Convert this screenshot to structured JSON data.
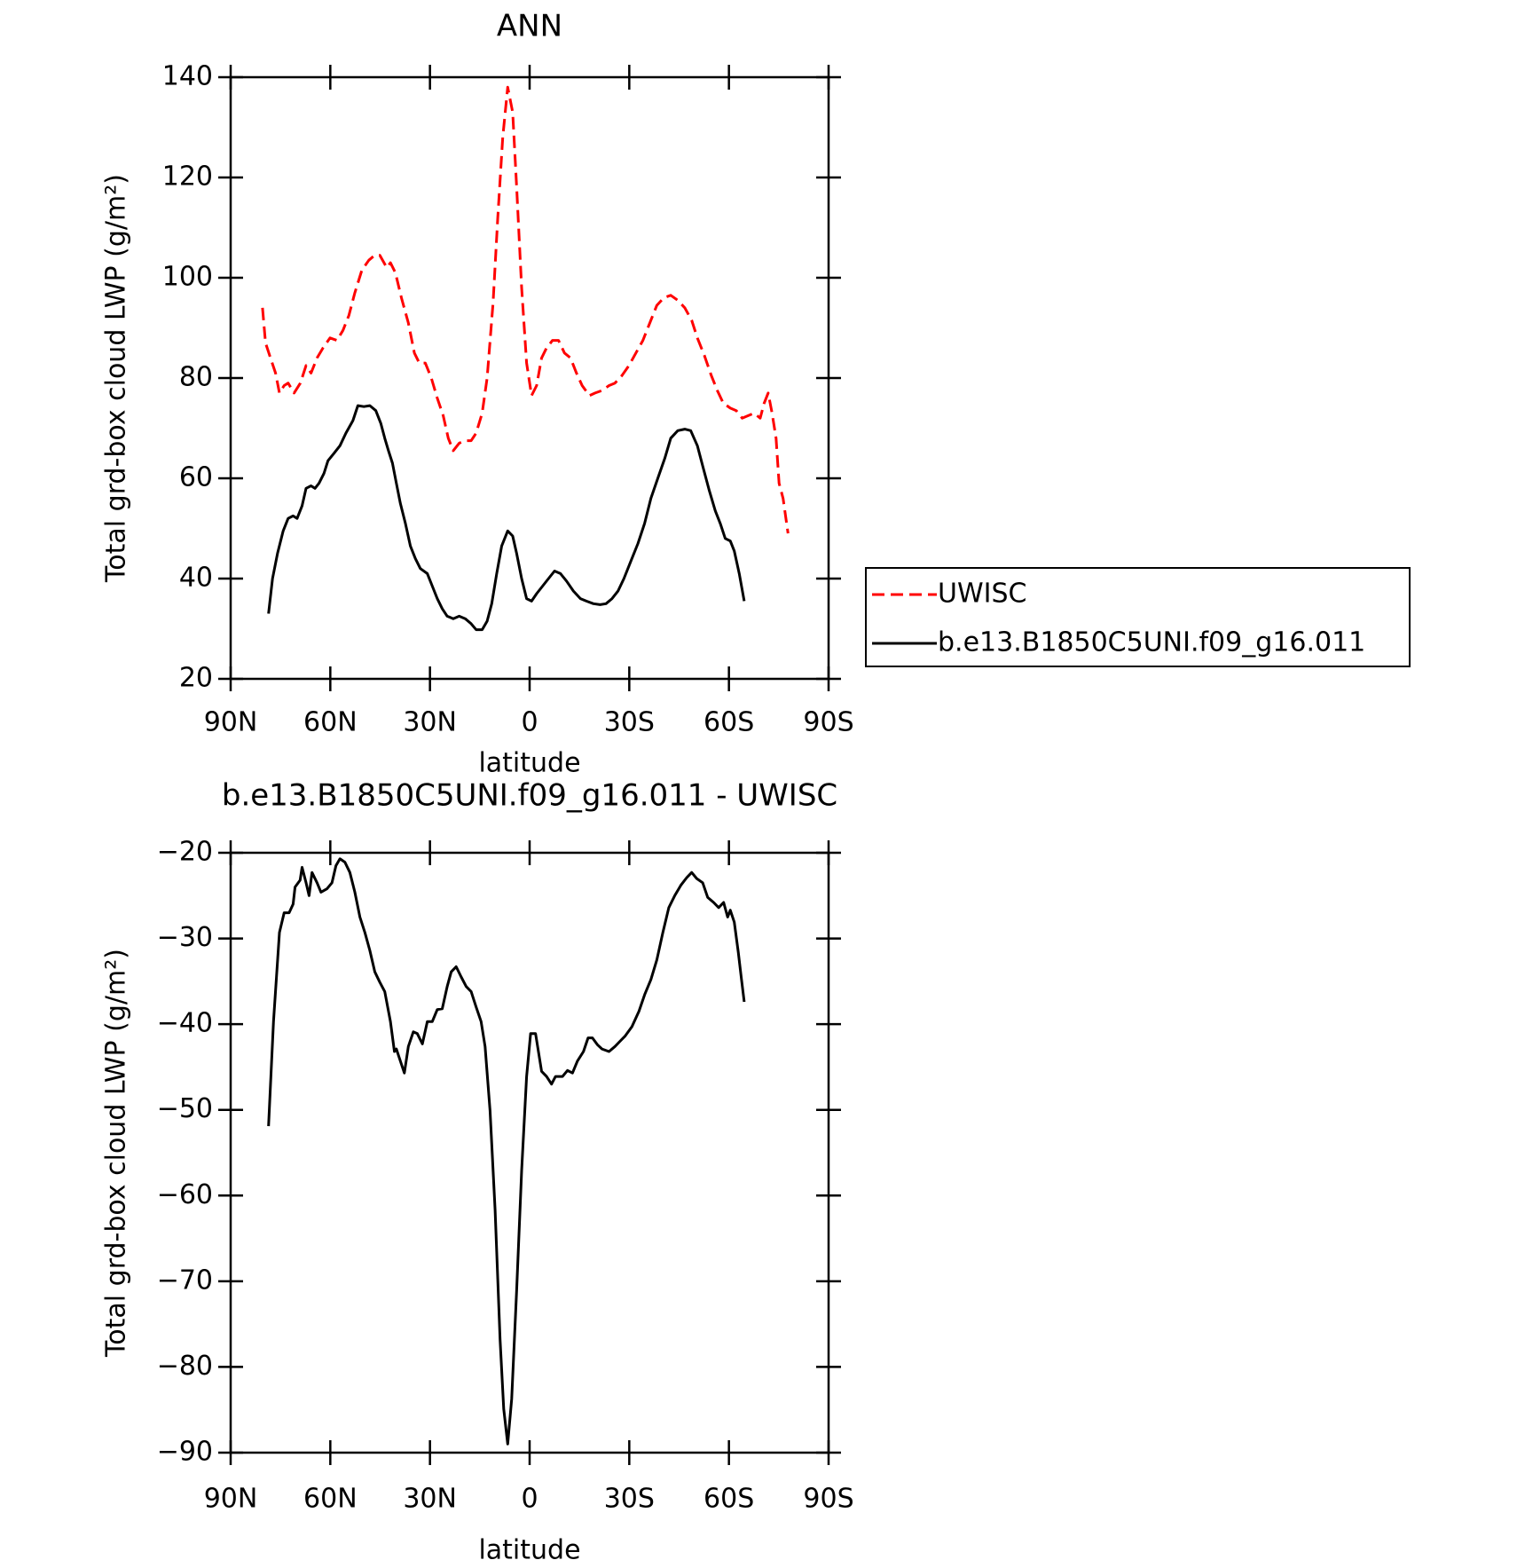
{
  "chart_data": [
    {
      "type": "line",
      "title": "ANN",
      "xlabel": "latitude",
      "ylabel": "Total grd-box cloud LWP (g/m²)",
      "xlim": [
        90,
        -90
      ],
      "ylim": [
        20,
        140
      ],
      "xticks": [
        {
          "value": 90,
          "label": "90N"
        },
        {
          "value": 60,
          "label": "60N"
        },
        {
          "value": 30,
          "label": "30N"
        },
        0,
        {
          "value": -30,
          "label": "30S"
        },
        {
          "value": -60,
          "label": "60S"
        },
        {
          "value": -90,
          "label": "90S"
        }
      ],
      "yticks": [
        20,
        40,
        60,
        80,
        100,
        120,
        140
      ],
      "legend": "right",
      "series": [
        {
          "name": "UWISC",
          "color": "#ff0000",
          "dash": true,
          "x": [
            80.4,
            79.5,
            78,
            76.5,
            75.3,
            73.9,
            72.7,
            70.9,
            69,
            67.3,
            65.8,
            64,
            62.2,
            60.1,
            58,
            56.2,
            54.4,
            52.6,
            50.5,
            48.4,
            46.6,
            45.1,
            43,
            41.9,
            40.4,
            38.6,
            36.5,
            34.7,
            33.2,
            31.4,
            29.6,
            27.8,
            26,
            24.5,
            23,
            21.2,
            19.4,
            17.6,
            16.1,
            14.3,
            12.8,
            11,
            9.6,
            8.1,
            6.6,
            5.1,
            3.9,
            2.4,
            0.9,
            -0.6,
            -2.1,
            -3.6,
            -5.1,
            -6.9,
            -8.7,
            -10.5,
            -12.3,
            -14.1,
            -15.8,
            -18,
            -19.7,
            -21.8,
            -23.9,
            -25.7,
            -27.8,
            -29.9,
            -32,
            -34.1,
            -36.2,
            -38.3,
            -40.4,
            -42.5,
            -44.6,
            -46.7,
            -48.8,
            -50.5,
            -52.6,
            -54.7,
            -56.5,
            -58.3,
            -60.4,
            -62.2,
            -64,
            -65.8,
            -67.6,
            -69.4,
            -70.6,
            -71.8,
            -73,
            -74.2,
            -75.1,
            -76.3,
            -77.8
          ],
          "values": [
            94,
            87,
            84,
            81,
            77,
            78.5,
            79,
            77,
            79,
            82.5,
            81,
            84,
            86,
            88,
            87.5,
            89.5,
            92.5,
            97,
            101.5,
            103.5,
            104.5,
            104.5,
            102,
            103,
            101,
            96,
            91,
            85,
            83,
            83,
            80,
            76,
            72.5,
            68,
            65.5,
            67,
            67.5,
            67.5,
            69,
            73,
            80,
            95,
            112,
            128,
            138,
            133,
            118,
            98,
            83,
            76.5,
            78.5,
            84,
            86,
            87.5,
            87.5,
            85,
            84,
            81,
            78.5,
            76.5,
            77,
            77.5,
            78.5,
            79,
            80.5,
            82.5,
            85,
            87.5,
            91,
            94.5,
            96,
            96.5,
            95.5,
            94,
            91.5,
            88,
            84.5,
            80.5,
            77.5,
            75,
            74,
            73.5,
            72,
            72.5,
            73,
            72,
            75,
            77,
            73,
            68,
            59,
            56,
            49
          ]
        },
        {
          "name": "b.e13.B1850C5UNI.f09_g16.011",
          "color": "#000000",
          "dash": false,
          "x": [
            78.6,
            77.4,
            75.9,
            74.2,
            72.7,
            71.2,
            70,
            68.5,
            67.3,
            65.8,
            64.6,
            63.4,
            61.9,
            60.7,
            58.9,
            57.1,
            55.3,
            53.2,
            51.7,
            49.9,
            48.1,
            46.3,
            44.8,
            43.6,
            42.5,
            41.3,
            40.1,
            38.9,
            37.4,
            35.9,
            34.4,
            32.9,
            30.8,
            29.3,
            27.8,
            26.3,
            24.8,
            23,
            21.2,
            19.4,
            17.6,
            16.1,
            14.3,
            12.8,
            11.4,
            9.9,
            8.4,
            6.6,
            5.1,
            3.9,
            2.4,
            0.9,
            -0.6,
            -2.1,
            -3.9,
            -5.7,
            -7.5,
            -9.3,
            -11.1,
            -13.2,
            -15.3,
            -17.1,
            -19.2,
            -21.2,
            -23,
            -24.8,
            -26.6,
            -28.4,
            -30.5,
            -32.6,
            -34.6,
            -36.5,
            -38.6,
            -40.7,
            -42.5,
            -44.6,
            -46.7,
            -48.5,
            -50.5,
            -52.3,
            -54.1,
            -55.9,
            -57.4,
            -58.9,
            -60.4,
            -61.6,
            -63.1,
            -64.6
          ],
          "values": [
            33,
            40,
            45,
            49.5,
            52,
            52.5,
            52,
            54.5,
            58,
            58.5,
            58,
            59,
            61,
            63.5,
            65,
            66.5,
            69,
            71.5,
            74.5,
            74.3,
            74.5,
            73.5,
            71,
            68,
            65.5,
            63,
            59,
            55,
            51,
            46.5,
            44,
            42,
            41,
            38.5,
            36,
            34,
            32.5,
            32,
            32.5,
            32,
            31,
            29.8,
            29.8,
            31.5,
            35,
            41,
            46.5,
            49.5,
            48.5,
            45,
            40,
            36,
            35.5,
            37,
            38.5,
            40,
            41.5,
            41,
            39.5,
            37.5,
            36,
            35.5,
            35,
            34.8,
            35,
            36,
            37.5,
            40,
            43.5,
            47,
            51,
            56,
            60,
            64,
            68,
            69.5,
            69.8,
            69.5,
            66.5,
            62,
            57.5,
            53.5,
            51,
            48,
            47.5,
            45.5,
            41,
            35.5
          ]
        }
      ]
    },
    {
      "type": "line",
      "title": "b.e13.B1850C5UNI.f09_g16.011 - UWISC",
      "xlabel": "latitude",
      "ylabel": "Total grd-box cloud LWP (g/m²)",
      "xlim": [
        90,
        -90
      ],
      "ylim": [
        -90,
        -20
      ],
      "xticks": [
        {
          "value": 90,
          "label": "90N"
        },
        {
          "value": 60,
          "label": "60N"
        },
        {
          "value": 30,
          "label": "30N"
        },
        0,
        {
          "value": -30,
          "label": "30S"
        },
        {
          "value": -60,
          "label": "60S"
        },
        {
          "value": -90,
          "label": "90S"
        }
      ],
      "yticks": [
        -90,
        -80,
        -70,
        -60,
        -50,
        -40,
        -30,
        -20
      ],
      "series": [
        {
          "color": "#000000",
          "dash": false,
          "x": [
            78.6,
            77.1,
            75.3,
            73.9,
            72.4,
            71.2,
            70.6,
            69.1,
            68.5,
            67.3,
            66.4,
            65.5,
            64,
            62.8,
            61,
            59.5,
            58.3,
            57.1,
            55.6,
            54.1,
            52.6,
            51.1,
            49.6,
            48.1,
            46.6,
            45.1,
            43.6,
            41.9,
            40.7,
            40.1,
            38.9,
            37.7,
            36.5,
            35,
            33.8,
            32.3,
            30.8,
            29.3,
            27.8,
            26.3,
            24.8,
            23.6,
            22.1,
            20.6,
            19.1,
            17.6,
            16.1,
            14.6,
            13.4,
            11.9,
            10.4,
            8.9,
            7.8,
            6.6,
            5.4,
            3.9,
            2.4,
            0.9,
            -0.3,
            -1.8,
            -3.6,
            -5.1,
            -6.6,
            -7.8,
            -9.9,
            -11.4,
            -12.9,
            -14.4,
            -16.2,
            -17.6,
            -18.9,
            -20.4,
            -21.8,
            -23.9,
            -25.7,
            -27.2,
            -28.7,
            -30.8,
            -32.9,
            -34.7,
            -36.5,
            -38.3,
            -40.1,
            -41.9,
            -43.7,
            -45.5,
            -47.3,
            -48.8,
            -50.3,
            -52.1,
            -53.6,
            -55.4,
            -56.9,
            -58.4,
            -59.6,
            -60.4,
            -61.6,
            -62.8,
            -63.7,
            -64.6
          ],
          "values": [
            -51.9,
            -39.7,
            -29.3,
            -27,
            -27,
            -26,
            -24,
            -23.2,
            -21.7,
            -23.5,
            -25,
            -22.3,
            -23.5,
            -24.6,
            -24.2,
            -23.5,
            -21.5,
            -20.7,
            -21.1,
            -22.3,
            -24.6,
            -27.5,
            -29.3,
            -31.4,
            -33.9,
            -35.1,
            -36.2,
            -39.7,
            -43.2,
            -42.9,
            -44.3,
            -45.7,
            -42.6,
            -40.9,
            -41.1,
            -42.3,
            -39.7,
            -39.7,
            -38.3,
            -38.2,
            -35.6,
            -33.9,
            -33.3,
            -34.5,
            -35.6,
            -36.2,
            -38,
            -39.7,
            -42.6,
            -50.1,
            -61.7,
            -76.8,
            -84.9,
            -89,
            -83.7,
            -71,
            -57.1,
            -46.1,
            -41.1,
            -41.1,
            -45.5,
            -46.1,
            -47,
            -46.1,
            -46.1,
            -45.4,
            -45.7,
            -44.3,
            -43.2,
            -41.6,
            -41.6,
            -42.4,
            -42.9,
            -43.2,
            -42.6,
            -42,
            -41.4,
            -40.3,
            -38.5,
            -36.5,
            -34.8,
            -32.5,
            -29.3,
            -26.4,
            -25,
            -23.8,
            -22.9,
            -22.3,
            -23,
            -23.5,
            -25.2,
            -25.8,
            -26.4,
            -25.8,
            -27.5,
            -26.7,
            -28.1,
            -31.6,
            -34.5,
            -37.4
          ]
        }
      ]
    }
  ]
}
